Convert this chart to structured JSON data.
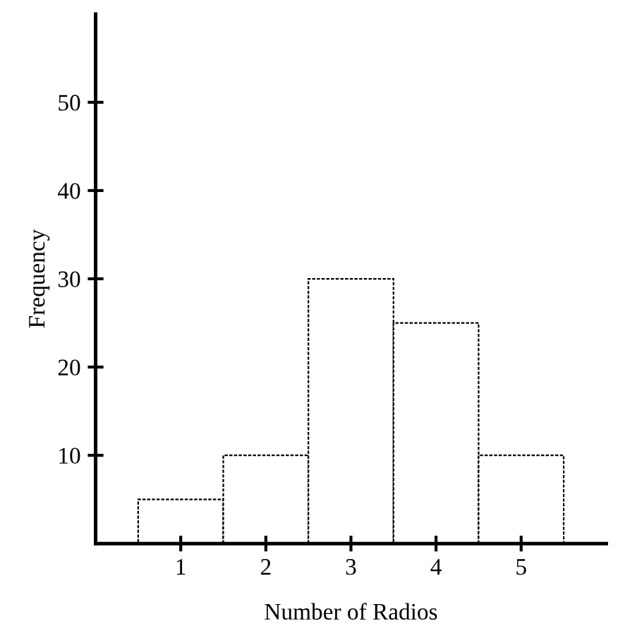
{
  "chart_data": {
    "type": "histogram",
    "xlabel": "Number of Radios",
    "ylabel": "Frequency",
    "bins": [
      0.5,
      1.5,
      2.5,
      3.5,
      4.5,
      5.5
    ],
    "values": [
      5,
      10,
      30,
      25,
      10
    ],
    "color": "#ffffff",
    "xlim": [
      0,
      6
    ],
    "xticks": [
      1,
      2,
      3,
      4,
      5
    ],
    "ylim": [
      0,
      60
    ],
    "yticks": [
      10,
      20,
      30,
      40,
      50
    ],
    "grid": false
  }
}
